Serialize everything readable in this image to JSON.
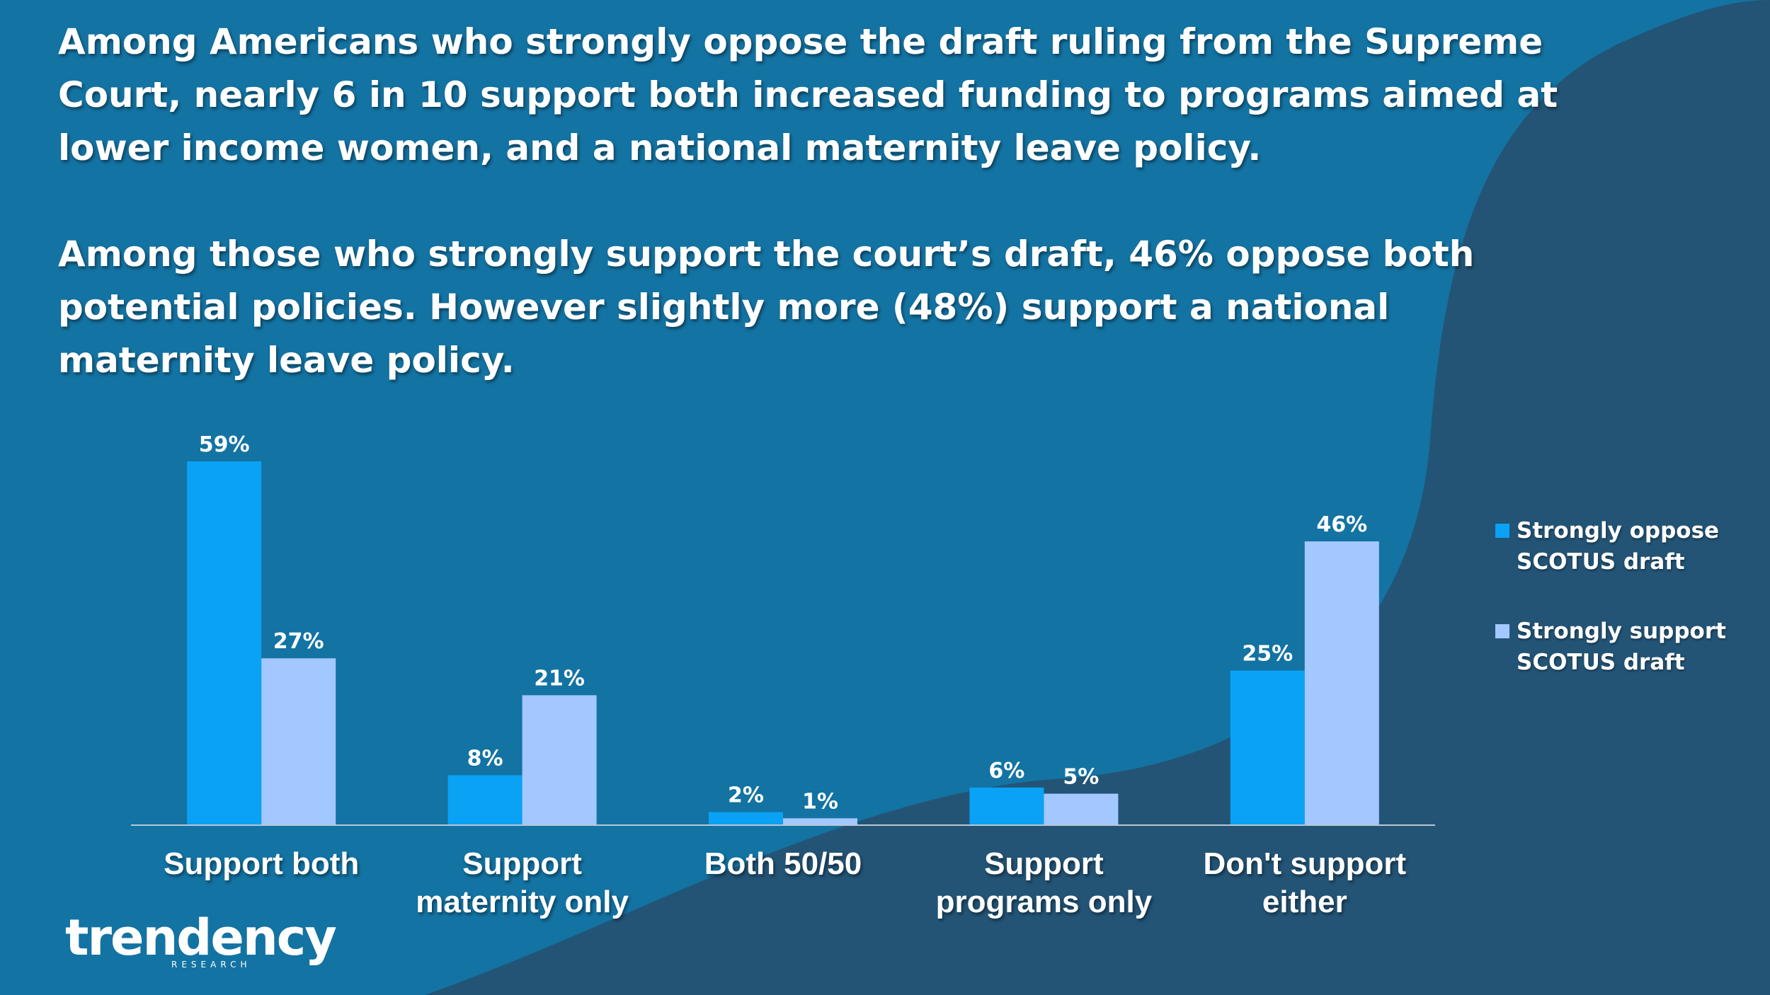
{
  "headline": {
    "paragraph1": "Among Americans who strongly oppose the draft ruling from the Supreme Court, nearly 6 in 10 support both increased funding to programs aimed at lower income women, and a national maternity leave policy.",
    "paragraph2": "Among those who strongly support the court’s draft, 46% oppose both potential policies. However slightly more (48%) support a national maternity leave policy."
  },
  "colors": {
    "background": "#1373a3",
    "background_dark": "#235476",
    "series_oppose": "#0aa2f5",
    "series_support": "#a3c8ff"
  },
  "chart_data": {
    "type": "bar",
    "categories": [
      [
        "Support both"
      ],
      [
        "Support",
        "maternity only"
      ],
      [
        "Both 50/50"
      ],
      [
        "Support",
        "programs only"
      ],
      [
        "Don't support",
        "either"
      ]
    ],
    "series": [
      {
        "name": "Strongly oppose SCOTUS draft",
        "values": [
          59,
          8,
          2,
          6,
          25
        ],
        "labels": [
          "59%",
          "8%",
          "2%",
          "6%",
          "25%"
        ]
      },
      {
        "name": "Strongly support SCOTUS draft",
        "values": [
          27,
          21,
          1,
          5,
          46
        ],
        "labels": [
          "27%",
          "21%",
          "1%",
          "5%",
          "46%"
        ]
      }
    ],
    "ylim": [
      0,
      59
    ],
    "legend_position": "right",
    "grid": false
  },
  "legend": {
    "oppose_line1": "Strongly oppose",
    "oppose_line2": "SCOTUS draft",
    "support_line1": "Strongly support",
    "support_line2": "SCOTUS draft"
  },
  "logo": {
    "word": "trendency",
    "sub": "RESEARCH"
  }
}
